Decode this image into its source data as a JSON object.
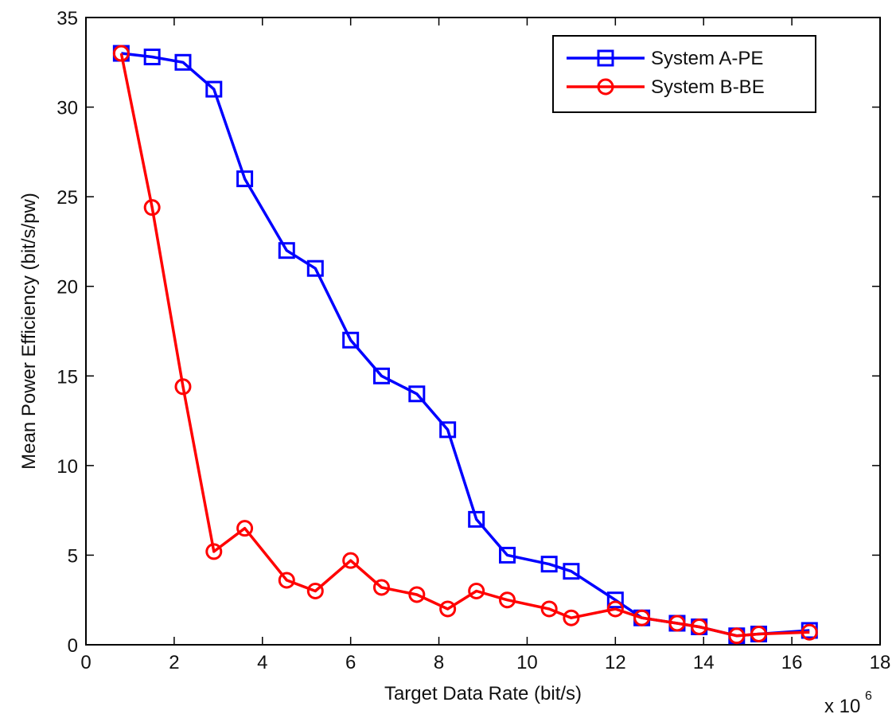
{
  "chart_data": {
    "type": "line",
    "title": "",
    "xlabel": "Target Data Rate (bit/s)",
    "ylabel": "Mean Power Efficiency (bit/s/pw)",
    "x_multiplier_label": "x 10",
    "x_multiplier_exponent": "6",
    "xlim": [
      0,
      18
    ],
    "ylim": [
      0,
      35
    ],
    "xticks": [
      "0",
      "2",
      "4",
      "6",
      "8",
      "10",
      "12",
      "14",
      "16",
      "18"
    ],
    "yticks": [
      "0",
      "5",
      "10",
      "15",
      "20",
      "25",
      "30",
      "35"
    ],
    "grid": false,
    "legend_position": "top-right",
    "series": [
      {
        "name": "System A-PE",
        "color": "#0000ff",
        "marker": "square",
        "x": [
          0.8,
          1.5,
          2.2,
          2.9,
          3.6,
          4.55,
          5.2,
          6.0,
          6.7,
          7.5,
          8.2,
          8.85,
          9.55,
          10.5,
          11.0,
          12.0,
          12.6,
          13.4,
          13.9,
          14.75,
          15.25,
          16.4
        ],
        "y": [
          33.0,
          32.8,
          32.5,
          31.0,
          26.0,
          22.0,
          21.0,
          17.0,
          15.0,
          14.0,
          12.0,
          7.0,
          5.0,
          4.5,
          4.1,
          2.5,
          1.5,
          1.2,
          1.0,
          0.5,
          0.6,
          0.8
        ]
      },
      {
        "name": "System B-BE",
        "color": "#ff0000",
        "marker": "circle",
        "x": [
          0.8,
          1.5,
          2.2,
          2.9,
          3.6,
          4.55,
          5.2,
          6.0,
          6.7,
          7.5,
          8.2,
          8.85,
          9.55,
          10.5,
          11.0,
          12.0,
          12.6,
          13.4,
          13.9,
          14.75,
          15.25,
          16.4
        ],
        "y": [
          33.0,
          24.4,
          14.4,
          5.2,
          6.5,
          3.6,
          3.0,
          4.7,
          3.2,
          2.8,
          2.0,
          3.0,
          2.5,
          2.0,
          1.5,
          2.0,
          1.5,
          1.2,
          1.0,
          0.5,
          0.6,
          0.7
        ]
      }
    ]
  }
}
